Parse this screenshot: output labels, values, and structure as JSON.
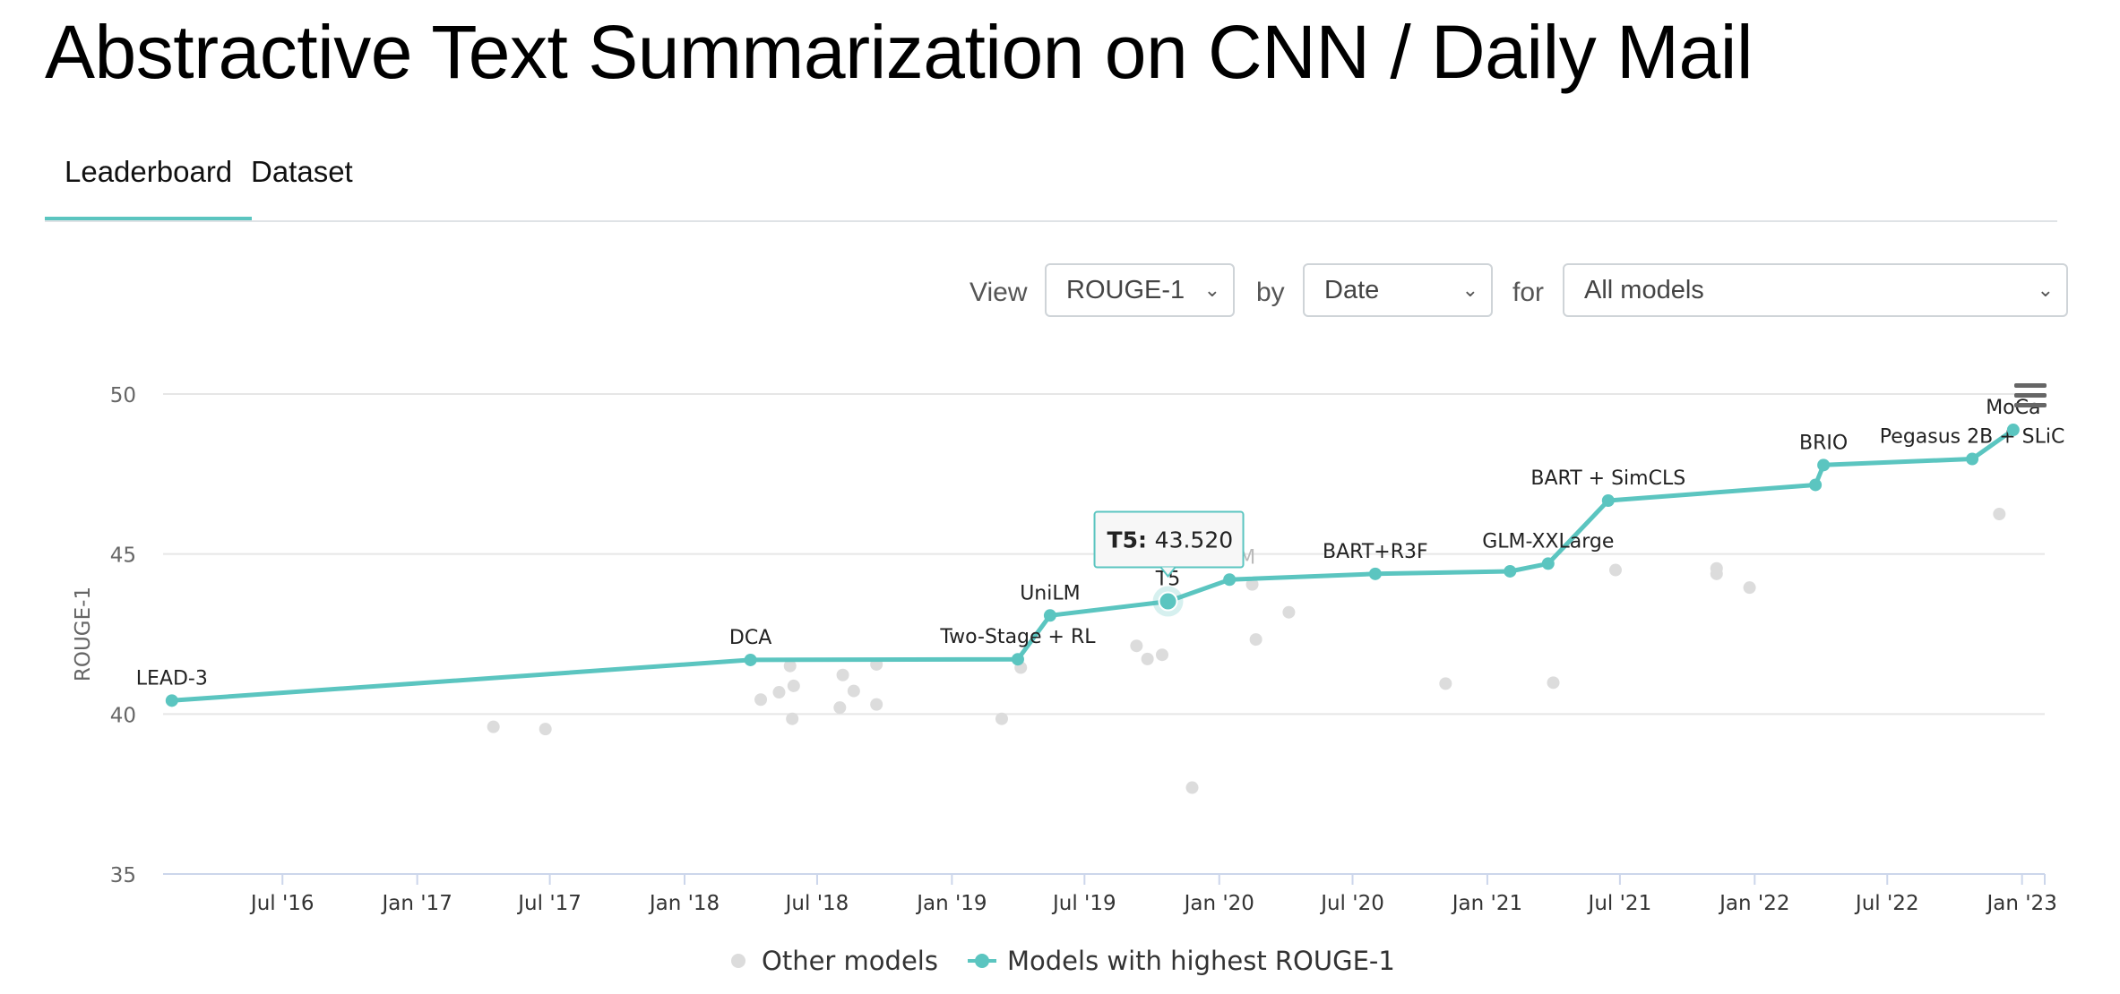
{
  "title": "Abstractive Text Summarization on CNN / Daily Mail",
  "tabs": [
    {
      "label": "Leaderboard",
      "active": true
    },
    {
      "label": "Dataset",
      "active": false
    }
  ],
  "controls": {
    "view_label": "View",
    "view_value": "ROUGE-1",
    "by_label": "by",
    "by_value": "Date",
    "for_label": "for",
    "for_value": "All models"
  },
  "tooltip": {
    "model": "T5:",
    "value": "43.520"
  },
  "colors": {
    "accent": "#5bc5c0",
    "other": "#dcdcdc"
  },
  "chart_data": {
    "type": "line",
    "ylabel": "ROUGE-1",
    "ylim": [
      35,
      50
    ],
    "yticks": [
      35,
      40,
      45,
      50
    ],
    "xlim": [
      "2016-01-20",
      "2023-02-01"
    ],
    "xticks": [
      {
        "date": "2016-07-01",
        "label": "Jul '16"
      },
      {
        "date": "2017-01-01",
        "label": "Jan '17"
      },
      {
        "date": "2017-07-01",
        "label": "Jul '17"
      },
      {
        "date": "2018-01-01",
        "label": "Jan '18"
      },
      {
        "date": "2018-07-01",
        "label": "Jul '18"
      },
      {
        "date": "2019-01-01",
        "label": "Jan '19"
      },
      {
        "date": "2019-07-01",
        "label": "Jul '19"
      },
      {
        "date": "2020-01-01",
        "label": "Jan '20"
      },
      {
        "date": "2020-07-01",
        "label": "Jul '20"
      },
      {
        "date": "2021-01-01",
        "label": "Jan '21"
      },
      {
        "date": "2021-07-01",
        "label": "Jul '21"
      },
      {
        "date": "2022-01-01",
        "label": "Jan '22"
      },
      {
        "date": "2022-07-01",
        "label": "Jul '22"
      },
      {
        "date": "2023-01-01",
        "label": "Jan '23"
      }
    ],
    "grid": true,
    "legend_position": "bottom",
    "series": [
      {
        "name": "Models with highest ROUGE-1",
        "color": "#5bc5c0",
        "points": [
          {
            "date": "2016-02-01",
            "y": 40.42,
            "label": "LEAD-3"
          },
          {
            "date": "2018-04-01",
            "y": 41.69,
            "label": "DCA"
          },
          {
            "date": "2019-04-01",
            "y": 41.71,
            "label": "Two-Stage + RL"
          },
          {
            "date": "2019-05-15",
            "y": 43.08,
            "label": "UniLM"
          },
          {
            "date": "2019-10-23",
            "y": 43.52,
            "label": "T5"
          },
          {
            "date": "2020-01-15",
            "y": 44.2,
            "label": "PALM"
          },
          {
            "date": "2020-08-01",
            "y": 44.38,
            "label": "BART+R3F"
          },
          {
            "date": "2021-02-01",
            "y": 44.46,
            "label": ""
          },
          {
            "date": "2021-03-25",
            "y": 44.7,
            "label": "GLM-XXLarge"
          },
          {
            "date": "2021-06-15",
            "y": 46.67,
            "label": "BART + SimCLS"
          },
          {
            "date": "2022-03-25",
            "y": 47.16,
            "label": ""
          },
          {
            "date": "2022-04-05",
            "y": 47.78,
            "label": "BRIO"
          },
          {
            "date": "2022-10-25",
            "y": 47.97,
            "label": "Pegasus 2B + SLiC"
          },
          {
            "date": "2022-12-20",
            "y": 48.88,
            "label": "MoCa"
          }
        ]
      },
      {
        "name": "Other models",
        "color": "#dcdcdc",
        "points": [
          {
            "date": "2017-04-15",
            "y": 39.6
          },
          {
            "date": "2017-06-25",
            "y": 39.53
          },
          {
            "date": "2018-04-15",
            "y": 40.45
          },
          {
            "date": "2018-05-10",
            "y": 40.68
          },
          {
            "date": "2018-05-25",
            "y": 41.5
          },
          {
            "date": "2018-05-30",
            "y": 40.88
          },
          {
            "date": "2018-05-28",
            "y": 39.85
          },
          {
            "date": "2018-08-05",
            "y": 41.22
          },
          {
            "date": "2018-08-20",
            "y": 40.72
          },
          {
            "date": "2018-09-20",
            "y": 41.55
          },
          {
            "date": "2018-09-20",
            "y": 40.3
          },
          {
            "date": "2018-08-01",
            "y": 40.2
          },
          {
            "date": "2019-03-10",
            "y": 39.85
          },
          {
            "date": "2019-04-05",
            "y": 41.45
          },
          {
            "date": "2019-09-10",
            "y": 42.13
          },
          {
            "date": "2019-09-25",
            "y": 41.72
          },
          {
            "date": "2019-10-15",
            "y": 41.85
          },
          {
            "date": "2019-11-25",
            "y": 37.7
          },
          {
            "date": "2020-02-15",
            "y": 44.05
          },
          {
            "date": "2020-02-20",
            "y": 42.33
          },
          {
            "date": "2020-04-05",
            "y": 43.18
          },
          {
            "date": "2020-11-05",
            "y": 40.95
          },
          {
            "date": "2021-04-01",
            "y": 40.98
          },
          {
            "date": "2021-06-25",
            "y": 44.5
          },
          {
            "date": "2021-11-10",
            "y": 44.55
          },
          {
            "date": "2021-11-10",
            "y": 44.38
          },
          {
            "date": "2021-12-25",
            "y": 43.95
          },
          {
            "date": "2022-12-01",
            "y": 46.25
          }
        ]
      }
    ],
    "legend": [
      "Other models",
      "Models with highest ROUGE-1"
    ]
  }
}
